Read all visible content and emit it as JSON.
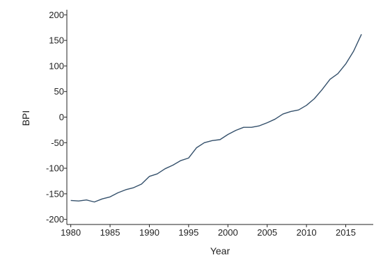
{
  "chart_data": {
    "type": "line",
    "title": "",
    "xlabel": "Year",
    "ylabel": "BPI",
    "xlim": [
      1979.5,
      2018.5
    ],
    "ylim": [
      -210,
      210
    ],
    "xticks": [
      1980,
      1985,
      1990,
      1995,
      2000,
      2005,
      2010,
      2015
    ],
    "yticks": [
      -200,
      -150,
      -100,
      -50,
      0,
      50,
      100,
      150,
      200
    ],
    "grid": false,
    "line_color": "#34506b",
    "series": [
      {
        "x": [
          1980,
          1981,
          1982,
          1983,
          1984,
          1985,
          1986,
          1987,
          1988,
          1989,
          1990,
          1991,
          1992,
          1993,
          1994,
          1995,
          1996,
          1997,
          1998,
          1999,
          2000,
          2001,
          2002,
          2003,
          2004,
          2005,
          2006,
          2007,
          2008,
          2009,
          2010,
          2011,
          2012,
          2013,
          2014,
          2015,
          2016,
          2017
        ],
        "values": [
          -163,
          -164,
          -162,
          -166,
          -160,
          -156,
          -148,
          -142,
          -138,
          -131,
          -116,
          -111,
          -101,
          -94,
          -85,
          -80,
          -60,
          -50,
          -46,
          -44,
          -34,
          -26,
          -20,
          -20,
          -17,
          -11,
          -4,
          6,
          11,
          14,
          23,
          36,
          54,
          74,
          85,
          104,
          129,
          162
        ]
      }
    ]
  }
}
